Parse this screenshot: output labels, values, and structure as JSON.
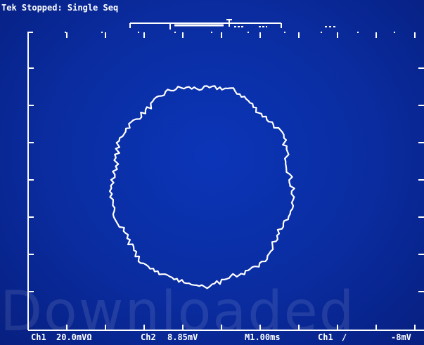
{
  "status": {
    "acquisition_text": "Tek Stopped: Single Seq"
  },
  "readout": {
    "ch1_label": "Ch1",
    "ch1_scale": "20.0mVΩ",
    "ch2_label": "Ch2",
    "ch2_scale": "8.85mV",
    "time_base": "M1.00ms",
    "trigger_source": "Ch1",
    "trigger_slope": "∕",
    "trigger_level": "-8mV"
  },
  "watermark": {
    "text": "Downloaded"
  },
  "icons": {
    "trigger_position": "trigger-marker-icon",
    "record_window": "record-window-bracket-icon"
  },
  "colors": {
    "background": "#0a2c9f",
    "trace": "#ffffff",
    "graticule": "#ffffff"
  }
}
